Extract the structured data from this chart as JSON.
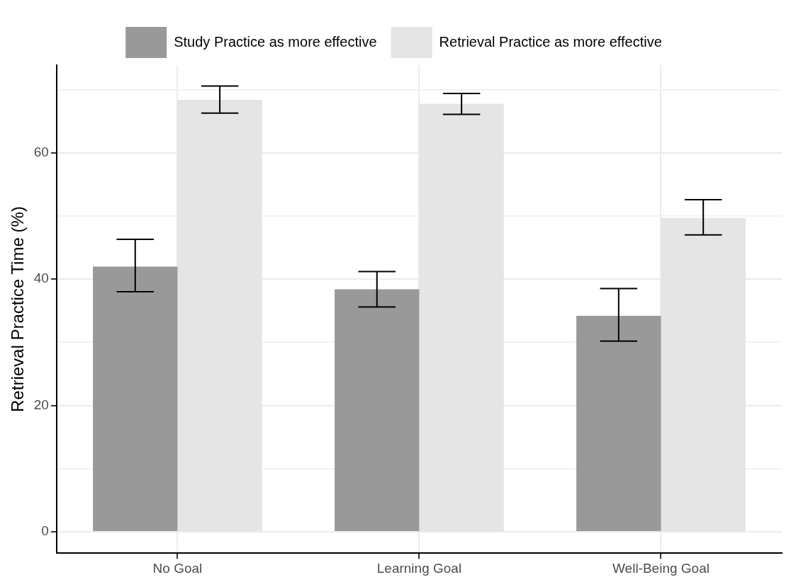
{
  "chart_data": {
    "type": "bar",
    "ylabel": "Retrieval Practice Time (%)",
    "categories": [
      "No Goal",
      "Learning Goal",
      "Well-Being Goal"
    ],
    "series": [
      {
        "name": "Study Practice as more effective",
        "color": "#999999",
        "values": [
          42.0,
          38.4,
          34.2
        ],
        "errors": [
          [
            38.0,
            46.3
          ],
          [
            35.6,
            41.2
          ],
          [
            30.2,
            38.5
          ]
        ]
      },
      {
        "name": "Retrieval Practice as more effective",
        "color": "#e5e5e5",
        "values": [
          68.4,
          67.8,
          49.7
        ],
        "errors": [
          [
            66.3,
            70.6
          ],
          [
            66.1,
            69.4
          ],
          [
            47.0,
            52.6
          ]
        ]
      }
    ],
    "ylim": [
      -3.4,
      73.9
    ],
    "yticks": [
      0,
      {
        "value": 10,
        "label": null
      },
      20,
      {
        "value": 30,
        "label": null
      },
      40,
      {
        "value": 50,
        "label": null
      },
      60,
      {
        "value": 70,
        "label": null
      }
    ],
    "grid": true,
    "legend": "top"
  }
}
